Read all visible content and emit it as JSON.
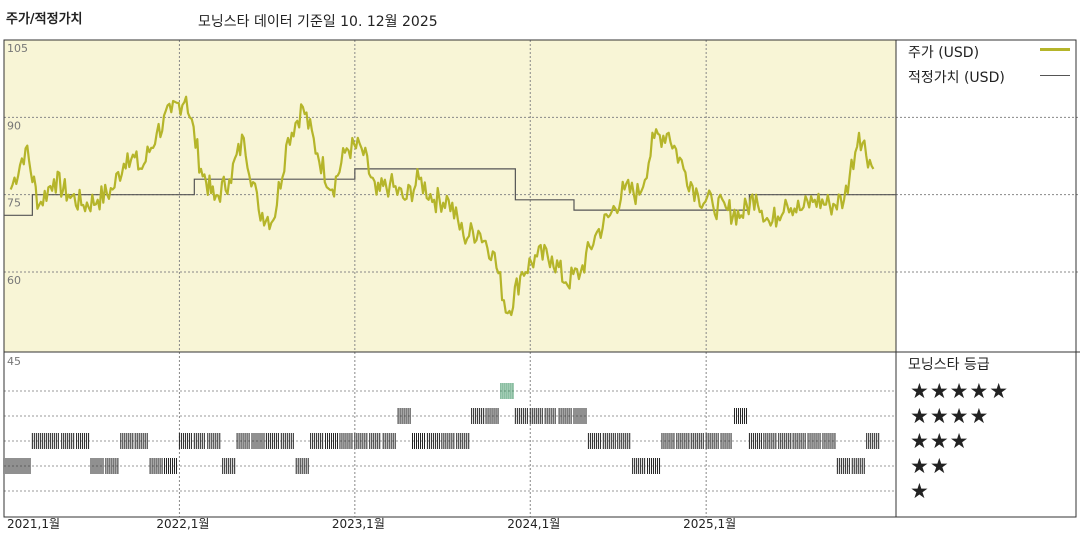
{
  "chart_title": "주가/적정가치",
  "subtitle": "모닝스타 데이터 기준일 10. 12월 2025",
  "legend": [
    {
      "label": "주가 (USD)",
      "color": "#b5b52a"
    },
    {
      "label": "적정가치 (USD)",
      "color": "#555555"
    }
  ],
  "rating_title": "모닝스타 등급",
  "rating_levels": [
    "★★★★★",
    "★★★★",
    "★★★",
    "★★",
    "★"
  ],
  "chart_data": [
    {
      "type": "line",
      "title": "주가/적정가치",
      "ylim": [
        45,
        105
      ],
      "yticks": [
        105,
        90,
        75,
        60,
        45
      ],
      "xlim": [
        "2021-01-01",
        "2026-01-31"
      ],
      "grid": true,
      "legend_position": "right",
      "series": [
        {
          "name": "주가 (USD)",
          "color": "#b5b52a",
          "x": [
            "2021-01",
            "2021-02",
            "2021-03",
            "2021-04",
            "2021-05",
            "2021-06",
            "2021-07",
            "2021-08",
            "2021-09",
            "2021-10",
            "2021-11",
            "2021-12",
            "2022-01",
            "2022-02",
            "2022-03",
            "2022-04",
            "2022-05",
            "2022-06",
            "2022-07",
            "2022-08",
            "2022-09",
            "2022-10",
            "2022-11",
            "2022-12",
            "2023-01",
            "2023-02",
            "2023-03",
            "2023-04",
            "2023-05",
            "2023-06",
            "2023-07",
            "2023-08",
            "2023-09",
            "2023-10",
            "2023-11",
            "2023-12",
            "2024-01",
            "2024-02",
            "2024-03",
            "2024-04",
            "2024-05",
            "2024-06",
            "2024-07",
            "2024-08",
            "2024-09",
            "2024-10",
            "2024-11",
            "2024-12",
            "2025-01",
            "2025-02",
            "2025-03",
            "2025-04",
            "2025-05",
            "2025-06",
            "2025-07",
            "2025-08",
            "2025-09",
            "2025-10",
            "2025-11",
            "2025-12"
          ],
          "y": [
            76,
            84,
            73,
            78,
            75,
            73,
            74,
            76,
            83,
            80,
            87,
            91,
            94,
            80,
            74,
            78,
            86,
            72,
            70,
            86,
            92,
            83,
            76,
            84,
            84,
            75,
            77,
            74,
            78,
            74,
            74,
            67,
            68,
            64,
            52,
            60,
            63,
            63,
            58,
            60,
            67,
            71,
            76,
            75,
            86,
            87,
            80,
            75,
            73,
            72,
            71,
            75,
            69,
            74,
            72,
            74,
            73,
            74,
            87,
            80
          ]
        },
        {
          "name": "적정가치 (USD)",
          "color": "#555555",
          "step": true,
          "x": [
            "2021-01",
            "2021-03",
            "2021-12",
            "2022-02",
            "2023-01",
            "2023-12",
            "2024-04",
            "2025-02",
            "2025-04",
            "2026-01"
          ],
          "y": [
            71,
            75,
            75,
            78,
            80,
            74,
            72,
            72,
            75,
            75
          ]
        }
      ]
    },
    {
      "type": "bar",
      "title": "모닝스타 등급",
      "ylabel": "",
      "ylim": [
        1,
        5
      ],
      "description_levels": "rating stars per period",
      "x": [
        "2021-01",
        "2021-03",
        "2021-05",
        "2021-06",
        "2021-07",
        "2021-08",
        "2021-09",
        "2021-10",
        "2021-11",
        "2021-12",
        "2022-01",
        "2022-02",
        "2022-03",
        "2022-04",
        "2022-05",
        "2022-06",
        "2022-07",
        "2022-08",
        "2022-09",
        "2022-10",
        "2022-11",
        "2022-12",
        "2023-01",
        "2023-02",
        "2023-03",
        "2023-04",
        "2023-05",
        "2023-06",
        "2023-07",
        "2023-08",
        "2023-09",
        "2023-10",
        "2023-11",
        "2023-12",
        "2024-01",
        "2024-02",
        "2024-03",
        "2024-04",
        "2024-05",
        "2024-06",
        "2024-07",
        "2024-08",
        "2024-09",
        "2024-10",
        "2024-11",
        "2024-12",
        "2025-01",
        "2025-02",
        "2025-03",
        "2025-04",
        "2025-05",
        "2025-06",
        "2025-07",
        "2025-08",
        "2025-09",
        "2025-10",
        "2025-11",
        "2025-12"
      ],
      "values": [
        2,
        3,
        3,
        3,
        2,
        2,
        3,
        3,
        2,
        2,
        3,
        3,
        3,
        2,
        3,
        3,
        3,
        3,
        2,
        3,
        3,
        3,
        3,
        3,
        3,
        4,
        3,
        3,
        3,
        3,
        4,
        4,
        5,
        4,
        4,
        4,
        4,
        4,
        3,
        3,
        3,
        2,
        2,
        3,
        3,
        3,
        3,
        3,
        4,
        3,
        3,
        3,
        3,
        3,
        3,
        2,
        2,
        3
      ]
    }
  ]
}
